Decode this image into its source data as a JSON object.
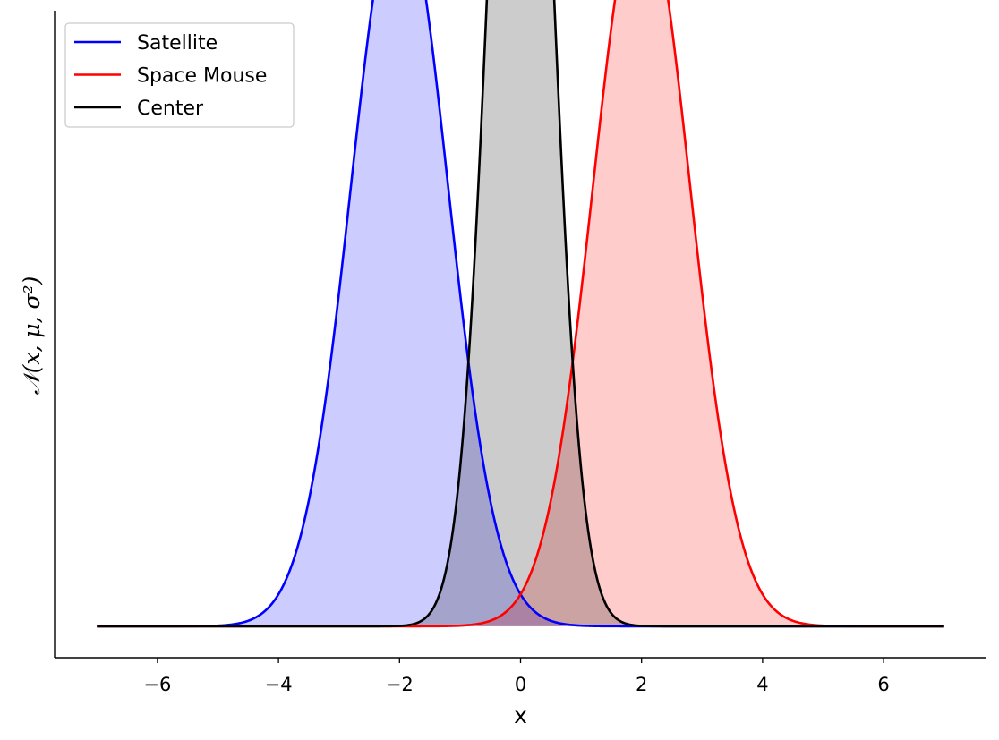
{
  "chart_data": {
    "type": "area",
    "xlabel": "x",
    "ylabel": "𝒩(x, μ, σ²)",
    "xlim": [
      -7.7,
      7.7
    ],
    "ylim": [
      -0.0215,
      0.4215
    ],
    "x_ticks": [
      -6,
      -4,
      -2,
      0,
      2,
      4,
      6
    ],
    "x_tick_labels": [
      "−6",
      "−4",
      "−2",
      "0",
      "2",
      "4",
      "6"
    ],
    "y_ticks_visible": false,
    "grid": false,
    "legend_position": "top-left",
    "x_range": [
      -7,
      7
    ],
    "series": [
      {
        "name": "Satellite",
        "mu": -2,
        "sigma": 0.8,
        "color": "#0000ff",
        "fill": "#ccccff"
      },
      {
        "name": "Space Mouse",
        "mu": 2,
        "sigma": 0.8,
        "color": "#ff0000",
        "fill": "#ffcccc"
      },
      {
        "name": "Center",
        "mu": 0,
        "sigma": 0.5,
        "color": "#000000",
        "fill": "#cccccc"
      }
    ],
    "legend": [
      "Satellite",
      "Space Mouse",
      "Center"
    ]
  }
}
